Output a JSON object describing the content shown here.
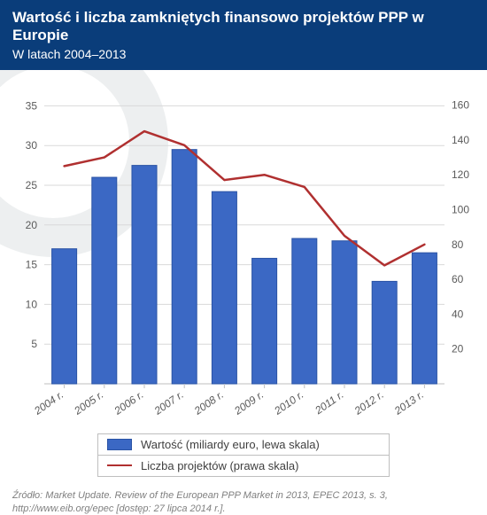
{
  "header": {
    "title": "Wartość i liczba zamkniętych finansowo projektów PPP w Europie",
    "subtitle": "W latach 2004–2013",
    "bg_color": "#0a3d7a",
    "text_color": "#ffffff",
    "title_fontsize": 17,
    "subtitle_fontsize": 14
  },
  "chart": {
    "type": "bar+line",
    "categories": [
      "2004 r.",
      "2005 r.",
      "2006 r.",
      "2007 r.",
      "2008 r.",
      "2009 r.",
      "2010 r.",
      "2011 r.",
      "2012 r.",
      "2013 r."
    ],
    "bar_series": {
      "label": "Wartość (miliardy euro, lewa skala)",
      "values": [
        17.0,
        26.0,
        27.5,
        29.5,
        24.2,
        15.8,
        18.3,
        18.0,
        12.9,
        16.5
      ],
      "color": "#3b68c4",
      "border_color": "#2a53a5",
      "bar_width": 0.62
    },
    "line_series": {
      "label": "Liczba projektów (prawa skala)",
      "values": [
        125,
        130,
        145,
        137,
        117,
        120,
        113,
        85,
        68,
        80
      ],
      "color": "#b03030",
      "stroke_width": 2.5,
      "marker": "none"
    },
    "left_axis": {
      "min": 0,
      "max": 37.5,
      "ticks": [
        5,
        10,
        15,
        20,
        25,
        30,
        35
      ]
    },
    "right_axis": {
      "min": 0,
      "max": 171,
      "ticks": [
        20,
        40,
        60,
        80,
        100,
        120,
        140,
        160
      ]
    },
    "grid_color": "#d9d9d9",
    "baseline_color": "#bfbfbf",
    "axis_font_color": "#5a5a5a",
    "axis_fontsize": 12,
    "xlabel_rotation": -35,
    "plot_bg": "transparent",
    "bg_circle_color": "#edeff0"
  },
  "legend": {
    "items": [
      {
        "kind": "bar",
        "label": "Wartość (miliardy euro, lewa skala)"
      },
      {
        "kind": "line",
        "label": "Liczba projektów (prawa skala)"
      }
    ],
    "border_color": "#bfbfbf",
    "fontsize": 13,
    "text_color": "#404040"
  },
  "source": {
    "text": "Źródło: Market Update. Review of the European PPP Market in 2013, EPEC 2013, s. 3, http://www.eib.org/epec [dostęp: 27 lipca 2014 r.].",
    "fontsize": 11,
    "color": "#808080"
  }
}
